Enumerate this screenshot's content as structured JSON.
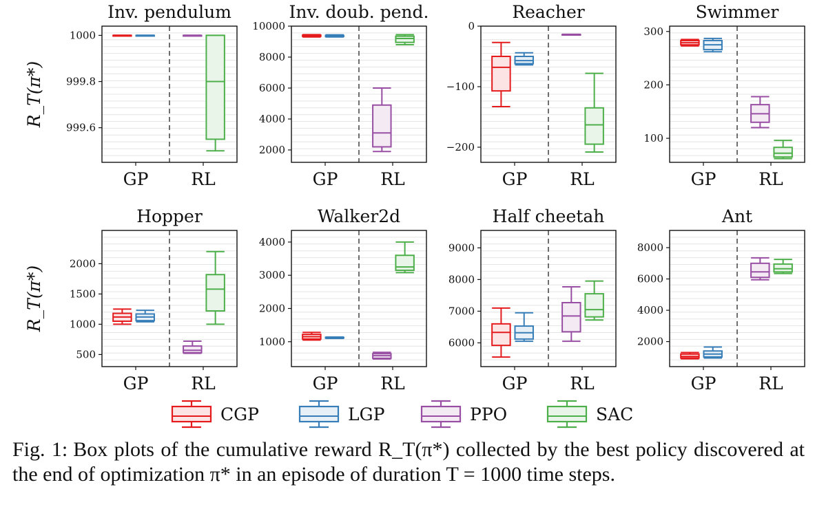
{
  "figure": {
    "ylabel": "R_T(π*)",
    "legend": [
      {
        "name": "CGP",
        "color": "#e41a1c"
      },
      {
        "name": "LGP",
        "color": "#377eb8"
      },
      {
        "name": "PPO",
        "color": "#984ea3"
      },
      {
        "name": "SAC",
        "color": "#4daf4a"
      }
    ],
    "group_labels": [
      "GP",
      "RL"
    ]
  },
  "caption": {
    "label": "Fig. 1:",
    "text": "Box plots of the cumulative reward R_T(π*) collected by the best policy discovered at the end of optimization π* in an episode of duration T = 1000 time steps."
  },
  "chart_data": [
    {
      "type": "box",
      "title": "Inv. pendulum",
      "ylim": [
        999.45,
        1000.04
      ],
      "yticks": [
        1000,
        999.8,
        999.6
      ],
      "ytick_labels": [
        "1000",
        "999.8",
        "999.6"
      ],
      "series": [
        {
          "name": "CGP",
          "min": 1000,
          "q1": 1000,
          "median": 1000,
          "q3": 1000,
          "max": 1000
        },
        {
          "name": "LGP",
          "min": 1000,
          "q1": 1000,
          "median": 1000,
          "q3": 1000,
          "max": 1000
        },
        {
          "name": "PPO",
          "min": 1000,
          "q1": 1000,
          "median": 1000,
          "q3": 1000,
          "max": 1000
        },
        {
          "name": "SAC",
          "min": 999.5,
          "q1": 999.55,
          "median": 999.8,
          "q3": 1000,
          "max": 1000
        }
      ]
    },
    {
      "type": "box",
      "title": "Inv. doub. pend.",
      "ylim": [
        1200,
        10000
      ],
      "yticks": [
        10000,
        8000,
        6000,
        4000,
        2000
      ],
      "ytick_labels": [
        "10000",
        "8000",
        "6000",
        "4000",
        "2000"
      ],
      "series": [
        {
          "name": "CGP",
          "min": 9300,
          "q1": 9340,
          "median": 9370,
          "q3": 9420,
          "max": 9450
        },
        {
          "name": "LGP",
          "min": 9300,
          "q1": 9330,
          "median": 9360,
          "q3": 9400,
          "max": 9440
        },
        {
          "name": "PPO",
          "min": 1900,
          "q1": 2200,
          "median": 3100,
          "q3": 4900,
          "max": 6000
        },
        {
          "name": "SAC",
          "min": 8800,
          "q1": 8950,
          "median": 9200,
          "q3": 9350,
          "max": 9450
        }
      ]
    },
    {
      "type": "box",
      "title": "Reacher",
      "ylim": [
        -225,
        0
      ],
      "yticks": [
        0,
        -100,
        -200
      ],
      "ytick_labels": [
        "0",
        "−100",
        "−200"
      ],
      "series": [
        {
          "name": "CGP",
          "min": -133,
          "q1": -107,
          "median": -68,
          "q3": -50,
          "max": -27
        },
        {
          "name": "LGP",
          "min": -64,
          "q1": -62,
          "median": -57,
          "q3": -50,
          "max": -44
        },
        {
          "name": "PPO",
          "min": -14.5,
          "q1": -14.3,
          "median": -14,
          "q3": -13.7,
          "max": -13.5
        },
        {
          "name": "SAC",
          "min": -208,
          "q1": -195,
          "median": -163,
          "q3": -135,
          "max": -78
        }
      ]
    },
    {
      "type": "box",
      "title": "Swimmer",
      "ylim": [
        55,
        310
      ],
      "yticks": [
        300,
        200,
        100
      ],
      "ytick_labels": [
        "300",
        "200",
        "100"
      ],
      "series": [
        {
          "name": "CGP",
          "min": 273,
          "q1": 275,
          "median": 279,
          "q3": 283,
          "max": 285
        },
        {
          "name": "LGP",
          "min": 262,
          "q1": 266,
          "median": 275,
          "q3": 283,
          "max": 287
        },
        {
          "name": "PPO",
          "min": 120,
          "q1": 130,
          "median": 146,
          "q3": 163,
          "max": 178
        },
        {
          "name": "SAC",
          "min": 62,
          "q1": 65,
          "median": 72,
          "q3": 83,
          "max": 96
        }
      ]
    },
    {
      "type": "box",
      "title": "Hopper",
      "ylim": [
        300,
        2550
      ],
      "yticks": [
        2000,
        1500,
        1000,
        500
      ],
      "ytick_labels": [
        "2000",
        "1500",
        "1000",
        "500"
      ],
      "series": [
        {
          "name": "CGP",
          "min": 1000,
          "q1": 1050,
          "median": 1120,
          "q3": 1180,
          "max": 1250
        },
        {
          "name": "LGP",
          "min": 1040,
          "q1": 1060,
          "median": 1120,
          "q3": 1170,
          "max": 1230
        },
        {
          "name": "PPO",
          "min": 520,
          "q1": 530,
          "median": 570,
          "q3": 640,
          "max": 720
        },
        {
          "name": "SAC",
          "min": 1000,
          "q1": 1220,
          "median": 1580,
          "q3": 1820,
          "max": 2200
        }
      ]
    },
    {
      "type": "box",
      "title": "Walker2d",
      "ylim": [
        250,
        4350
      ],
      "yticks": [
        4000,
        3000,
        2000,
        1000
      ],
      "ytick_labels": [
        "4000",
        "3000",
        "2000",
        "1000"
      ],
      "series": [
        {
          "name": "CGP",
          "min": 1050,
          "q1": 1080,
          "median": 1150,
          "q3": 1220,
          "max": 1280
        },
        {
          "name": "LGP",
          "min": 1100,
          "q1": 1110,
          "median": 1120,
          "q3": 1130,
          "max": 1140
        },
        {
          "name": "PPO",
          "min": 480,
          "q1": 500,
          "median": 580,
          "q3": 640,
          "max": 680
        },
        {
          "name": "SAC",
          "min": 3080,
          "q1": 3150,
          "median": 3250,
          "q3": 3600,
          "max": 4000
        }
      ]
    },
    {
      "type": "box",
      "title": "Half cheetah",
      "ylim": [
        5250,
        9550
      ],
      "yticks": [
        9000,
        8000,
        7000,
        6000
      ],
      "ytick_labels": [
        "9000",
        "8000",
        "7000",
        "6000"
      ],
      "series": [
        {
          "name": "CGP",
          "min": 5550,
          "q1": 5920,
          "median": 6330,
          "q3": 6600,
          "max": 7100
        },
        {
          "name": "LGP",
          "min": 6050,
          "q1": 6120,
          "median": 6320,
          "q3": 6530,
          "max": 6950
        },
        {
          "name": "PPO",
          "min": 6050,
          "q1": 6350,
          "median": 6850,
          "q3": 7270,
          "max": 7770
        },
        {
          "name": "SAC",
          "min": 6720,
          "q1": 6820,
          "median": 7050,
          "q3": 7550,
          "max": 7950
        }
      ]
    },
    {
      "type": "box",
      "title": "Ant",
      "ylim": [
        400,
        9100
      ],
      "yticks": [
        8000,
        6000,
        4000,
        2000
      ],
      "ytick_labels": [
        "8000",
        "6000",
        "4000",
        "2000"
      ],
      "series": [
        {
          "name": "CGP",
          "min": 900,
          "q1": 950,
          "median": 1050,
          "q3": 1200,
          "max": 1300
        },
        {
          "name": "LGP",
          "min": 950,
          "q1": 1020,
          "median": 1200,
          "q3": 1400,
          "max": 1650
        },
        {
          "name": "PPO",
          "min": 5950,
          "q1": 6100,
          "median": 6450,
          "q3": 7000,
          "max": 7350
        },
        {
          "name": "SAC",
          "min": 6350,
          "q1": 6450,
          "median": 6650,
          "q3": 6950,
          "max": 7250
        }
      ]
    }
  ]
}
